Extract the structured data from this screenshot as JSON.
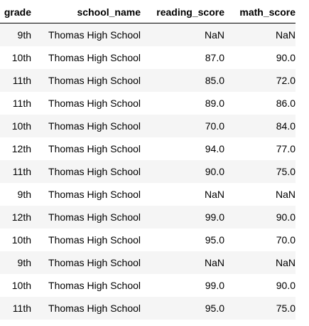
{
  "table": {
    "columns": [
      "grade",
      "school_name",
      "reading_score",
      "math_score"
    ],
    "rows": [
      [
        "9th",
        "Thomas High School",
        "NaN",
        "NaN"
      ],
      [
        "10th",
        "Thomas High School",
        "87.0",
        "90.0"
      ],
      [
        "11th",
        "Thomas High School",
        "85.0",
        "72.0"
      ],
      [
        "11th",
        "Thomas High School",
        "89.0",
        "86.0"
      ],
      [
        "10th",
        "Thomas High School",
        "70.0",
        "84.0"
      ],
      [
        "12th",
        "Thomas High School",
        "94.0",
        "77.0"
      ],
      [
        "11th",
        "Thomas High School",
        "90.0",
        "75.0"
      ],
      [
        "9th",
        "Thomas High School",
        "NaN",
        "NaN"
      ],
      [
        "12th",
        "Thomas High School",
        "99.0",
        "90.0"
      ],
      [
        "10th",
        "Thomas High School",
        "95.0",
        "70.0"
      ],
      [
        "9th",
        "Thomas High School",
        "NaN",
        "NaN"
      ],
      [
        "10th",
        "Thomas High School",
        "99.0",
        "90.0"
      ],
      [
        "11th",
        "Thomas High School",
        "95.0",
        "75.0"
      ]
    ]
  }
}
